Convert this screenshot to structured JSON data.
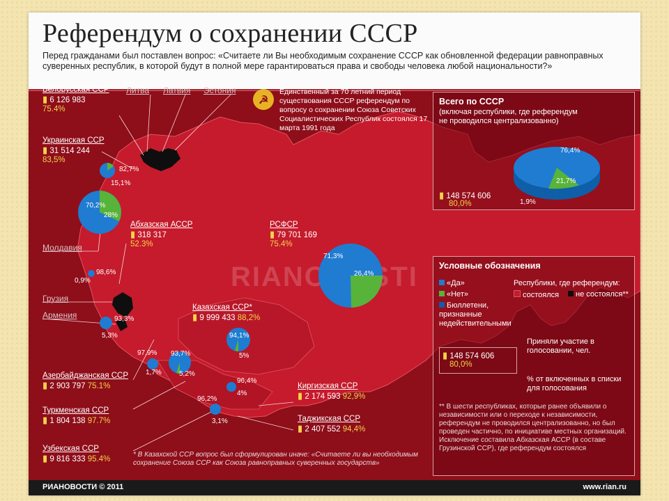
{
  "title": "Референдум о сохранении СССР",
  "question": "Перед гражданами был поставлен вопрос: «Считаете ли Вы необходимым сохранение СССР как обновленной федерации равноправных суверенных республик, в которой будут в полной мере гарантироваться права и свободы человека любой национальности?»",
  "intro": "Единственный за 70 летний период существования СССР референдум по вопросу о сохранении Союза Советских Социалистических Республик состоялся 17 марта 1991 года",
  "total": {
    "title": "Всего по СССР",
    "subtitle": "(включая республики, где референдум не проводился централизованно)",
    "votes": "148 574 606",
    "turnout": "80,0%",
    "yes": "76,4%",
    "no": "21,7%",
    "invalid": "1,9%"
  },
  "not_held": [
    "Литва",
    "Латвия",
    "Эстония",
    "Молдавия",
    "Грузия",
    "Армения"
  ],
  "republics": {
    "byelorussia": {
      "name": "Белорусская ССР",
      "votes": "6 126 983",
      "turnout": "75.4%"
    },
    "ukraine": {
      "name": "Украинская ССР",
      "votes": "31 514 244",
      "turnout": "83,5%",
      "yes": "82,7%",
      "no": "15,1%"
    },
    "abkhazia": {
      "name": "Абхазская АССР",
      "votes": "318 317",
      "turnout": "52.3%",
      "yes": "98,6%",
      "no": "0,9%"
    },
    "russia": {
      "name": "РСФСР",
      "votes": "79 701 169",
      "turnout": "75.4%",
      "yes": "71,3%",
      "no": "26,4%"
    },
    "kazakhstan": {
      "name": "Казахская ССР*",
      "votes": "9 999 433",
      "turnout": "88,2%",
      "yes": "94,1%",
      "no": "5%"
    },
    "azerbaijan": {
      "name": "Азербайджанская ССР",
      "votes": "2 903 797",
      "turnout": "75.1%",
      "yes": "93,3%",
      "no": "5,3%"
    },
    "turkmenia": {
      "name": "Туркменская ССР",
      "votes": "1 804 138",
      "turnout": "97.7%",
      "yes": "97,9%",
      "no": "1,7%"
    },
    "uzbekistan": {
      "name": "Узбекская ССР",
      "votes": "9 816 333",
      "turnout": "95.4%",
      "yes": "93,7%",
      "no": "5,2%"
    },
    "kirghizia": {
      "name": "Киргизская ССР",
      "votes": "2 174 593",
      "turnout": "92,9%",
      "yes": "96,4%",
      "no": "4%"
    },
    "tajikistan": {
      "name": "Таджикская ССР",
      "votes": "2 407 552",
      "turnout": "94,4%",
      "yes": "96,2%",
      "no": "3,1%"
    }
  },
  "belarus_pie": {
    "yes": "70,2%",
    "no": "28%"
  },
  "legend": {
    "title": "Условные обозначения",
    "yes": "«Да»",
    "no": "«Нет»",
    "invalid": "Бюллетени, признанные недействительными",
    "republics_title": "Республики, где референдум:",
    "held": "состоялся",
    "not_held": "не состоялся**",
    "participated": "Приняли участие в голосовании, чел.",
    "sample_votes": "148 574 606",
    "sample_pct": "80,0%",
    "pct_label": "% от включенных в списки для голосования",
    "note_double_star": "** В шести республиках, которые ранее объявили о независимости или о переходе к независимости, референдум не проводился централизованно, но был проведен частично, по инициативе местных организаций. Исключение составила Абхазская АССР (в составе Грузинской ССР), где референдум состоялся"
  },
  "note_star": "* В Казахской ССР вопрос был сформулирован иначе: «Считаете ли вы необходимым сохранение Союза ССР как Союза равноправных суверенных государств»",
  "watermark": "RIANOVOSTI",
  "footer": {
    "left": "РИАНОВОСТИ © 2011",
    "right": "www.rian.ru"
  },
  "colors": {
    "yes": "#1f7cd1",
    "no": "#58b33b",
    "map": "#c51b2c",
    "bg": "#8e0e1a",
    "accent": "#f7d34a"
  }
}
